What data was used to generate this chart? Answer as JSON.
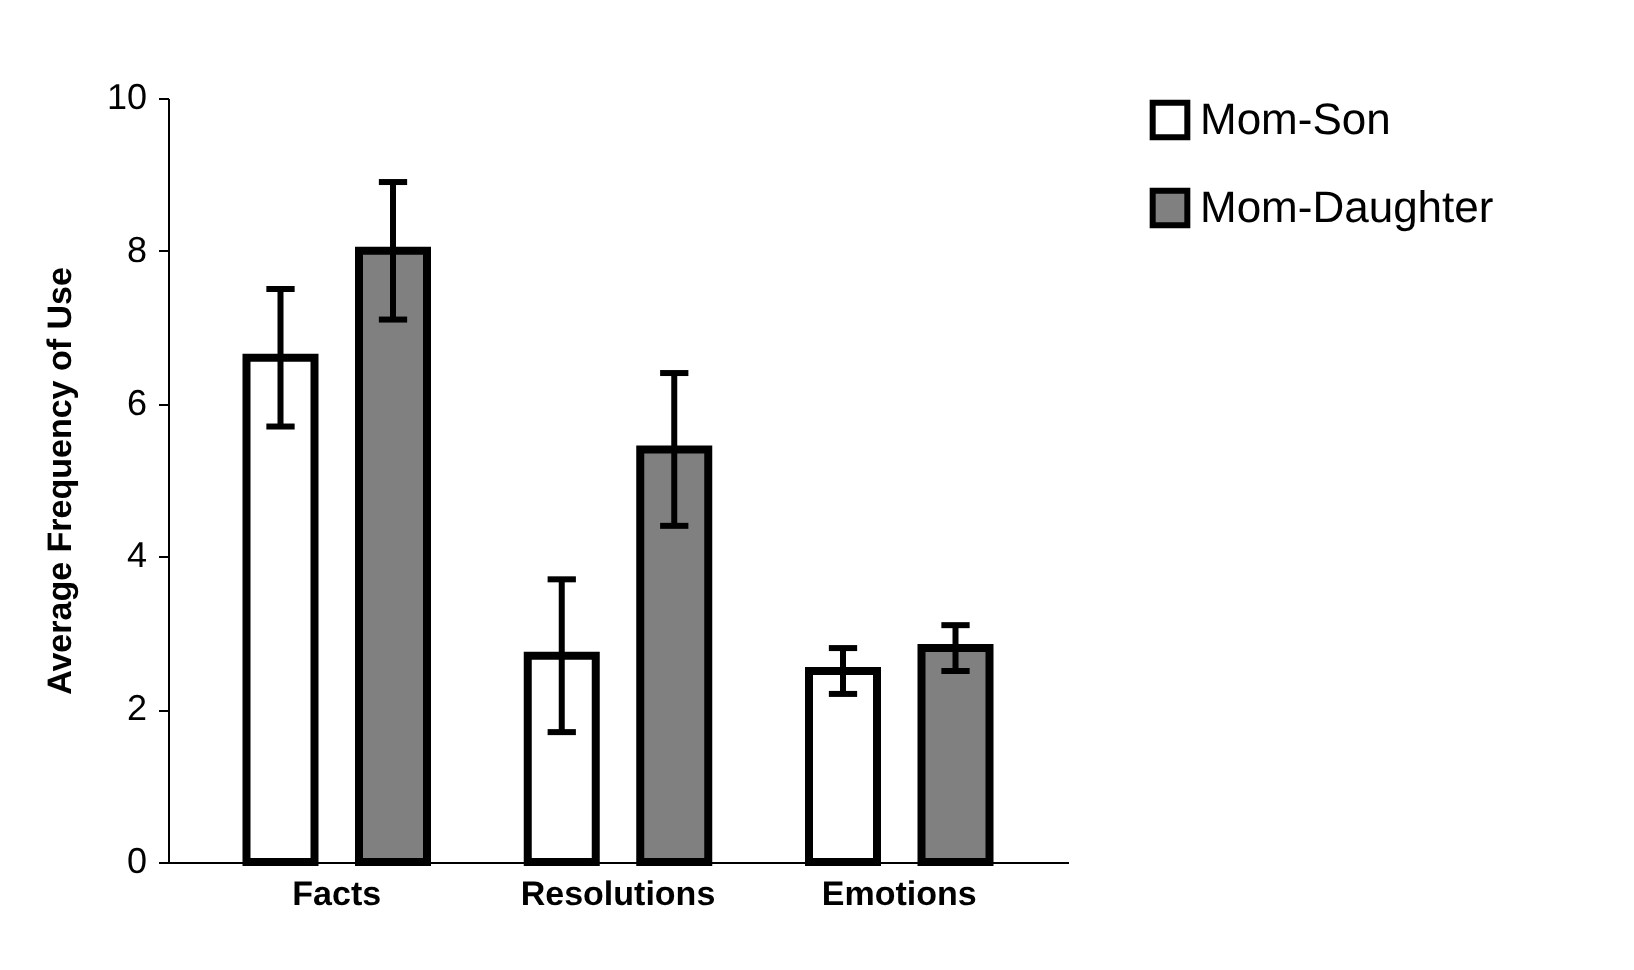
{
  "chart_data": {
    "type": "bar",
    "ylabel": "Average Frequency of Use",
    "categories": [
      "Facts",
      "Resolutions",
      "Emotions"
    ],
    "series": [
      {
        "name": "Mom-Son",
        "color": "#ffffff",
        "values": [
          6.6,
          2.7,
          2.5
        ],
        "errors": [
          0.9,
          1.0,
          0.3
        ]
      },
      {
        "name": "Mom-Daughter",
        "color": "#808080",
        "values": [
          8.0,
          5.4,
          2.8
        ],
        "errors": [
          0.9,
          1.0,
          0.3
        ]
      }
    ],
    "ylim": [
      0,
      10
    ],
    "yticks": [
      0,
      2,
      4,
      6,
      8,
      10
    ],
    "grid": false,
    "legend": "right"
  }
}
